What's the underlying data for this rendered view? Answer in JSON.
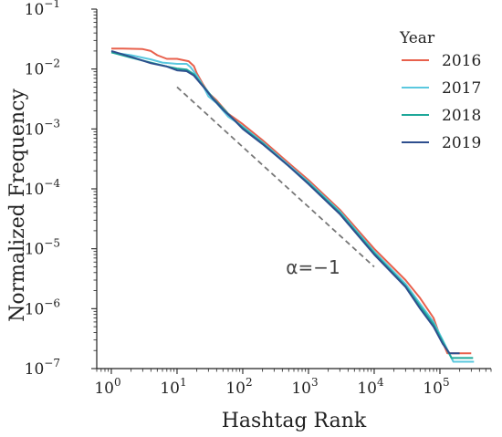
{
  "chart_data": {
    "type": "line",
    "title": "",
    "xlabel": "Hashtag Rank",
    "ylabel": "Normalized Frequency",
    "xscale": "log",
    "yscale": "log",
    "xlim": [
      0.6,
      600000
    ],
    "ylim": [
      1e-07,
      0.1
    ],
    "x_ticks": [
      {
        "value": 1,
        "label": "10",
        "exp": "0"
      },
      {
        "value": 10,
        "label": "10",
        "exp": "1"
      },
      {
        "value": 100,
        "label": "10",
        "exp": "2"
      },
      {
        "value": 1000,
        "label": "10",
        "exp": "3"
      },
      {
        "value": 10000,
        "label": "10",
        "exp": "4"
      },
      {
        "value": 100000,
        "label": "10",
        "exp": "5"
      }
    ],
    "y_ticks": [
      {
        "value": 1e-07,
        "label": "10",
        "exp": "−7"
      },
      {
        "value": 1e-06,
        "label": "10",
        "exp": "−6"
      },
      {
        "value": 1e-05,
        "label": "10",
        "exp": "−5"
      },
      {
        "value": 0.0001,
        "label": "10",
        "exp": "−4"
      },
      {
        "value": 0.001,
        "label": "10",
        "exp": "−3"
      },
      {
        "value": 0.01,
        "label": "10",
        "exp": "−2"
      },
      {
        "value": 0.1,
        "label": "10",
        "exp": "−1"
      }
    ],
    "grid": false,
    "legend": {
      "title": "Year",
      "position": "top-right"
    },
    "series": [
      {
        "name": "2016",
        "color": "#e8604c",
        "points": [
          [
            1,
            0.022
          ],
          [
            1.5,
            0.022
          ],
          [
            3,
            0.0215
          ],
          [
            4,
            0.02
          ],
          [
            5,
            0.017
          ],
          [
            7,
            0.0148
          ],
          [
            10,
            0.0148
          ],
          [
            15,
            0.0135
          ],
          [
            18,
            0.0112
          ],
          [
            20,
            0.0085
          ],
          [
            25,
            0.0055
          ],
          [
            30,
            0.004
          ],
          [
            40,
            0.003
          ],
          [
            60,
            0.0018
          ],
          [
            100,
            0.0012
          ],
          [
            200,
            0.00065
          ],
          [
            500,
            0.00027
          ],
          [
            1000,
            0.00014
          ],
          [
            3000,
            4.5e-05
          ],
          [
            10000,
            1e-05
          ],
          [
            30000,
            3e-06
          ],
          [
            50000,
            1.5e-06
          ],
          [
            80000,
            7e-07
          ],
          [
            100000,
            3.5e-07
          ],
          [
            130000,
            1.8e-07
          ],
          [
            200000,
            1.8e-07
          ],
          [
            300000,
            1.8e-07
          ]
        ]
      },
      {
        "name": "2017",
        "color": "#5bc8df",
        "points": [
          [
            1,
            0.019
          ],
          [
            2,
            0.017
          ],
          [
            4,
            0.0145
          ],
          [
            6,
            0.0128
          ],
          [
            10,
            0.0122
          ],
          [
            14,
            0.0122
          ],
          [
            16,
            0.0108
          ],
          [
            20,
            0.0078
          ],
          [
            25,
            0.0052
          ],
          [
            30,
            0.0035
          ],
          [
            40,
            0.0027
          ],
          [
            60,
            0.0016
          ],
          [
            100,
            0.0011
          ],
          [
            200,
            0.0006
          ],
          [
            500,
            0.00025
          ],
          [
            1000,
            0.00013
          ],
          [
            3000,
            4.2e-05
          ],
          [
            10000,
            9e-06
          ],
          [
            30000,
            2.6e-06
          ],
          [
            50000,
            1.2e-06
          ],
          [
            80000,
            6e-07
          ],
          [
            110000,
            3e-07
          ],
          [
            160000,
            1.3e-07
          ],
          [
            330000,
            1.3e-07
          ]
        ]
      },
      {
        "name": "2018",
        "color": "#1fa89a",
        "points": [
          [
            1,
            0.019
          ],
          [
            2,
            0.0155
          ],
          [
            4,
            0.0128
          ],
          [
            7,
            0.011
          ],
          [
            10,
            0.0102
          ],
          [
            14,
            0.0098
          ],
          [
            18,
            0.0082
          ],
          [
            22,
            0.0062
          ],
          [
            28,
            0.0045
          ],
          [
            35,
            0.0033
          ],
          [
            50,
            0.0022
          ],
          [
            70,
            0.0015
          ],
          [
            100,
            0.00105
          ],
          [
            200,
            0.00058
          ],
          [
            500,
            0.00024
          ],
          [
            1000,
            0.000125
          ],
          [
            3000,
            4e-05
          ],
          [
            10000,
            8.5e-06
          ],
          [
            30000,
            2.4e-06
          ],
          [
            50000,
            1.1e-06
          ],
          [
            80000,
            5.5e-07
          ],
          [
            110000,
            2.8e-07
          ],
          [
            150000,
            1.5e-07
          ],
          [
            320000,
            1.5e-07
          ]
        ]
      },
      {
        "name": "2019",
        "color": "#2e4f8e",
        "points": [
          [
            1,
            0.02
          ],
          [
            2,
            0.016
          ],
          [
            4,
            0.0125
          ],
          [
            7,
            0.011
          ],
          [
            10,
            0.0095
          ],
          [
            14,
            0.0092
          ],
          [
            18,
            0.0078
          ],
          [
            22,
            0.006
          ],
          [
            28,
            0.0044
          ],
          [
            35,
            0.0032
          ],
          [
            50,
            0.0021
          ],
          [
            70,
            0.0015
          ],
          [
            100,
            0.001
          ],
          [
            200,
            0.00056
          ],
          [
            500,
            0.00024
          ],
          [
            1000,
            0.00012
          ],
          [
            3000,
            3.8e-05
          ],
          [
            10000,
            8e-06
          ],
          [
            30000,
            2.3e-06
          ],
          [
            50000,
            1e-06
          ],
          [
            80000,
            5e-07
          ],
          [
            110000,
            2.6e-07
          ],
          [
            140000,
            1.8e-07
          ],
          [
            200000,
            1.8e-07
          ]
        ]
      }
    ],
    "reference_line": {
      "label": "α=−1",
      "color": "#777777",
      "points": [
        [
          10,
          0.005
        ],
        [
          10000,
          5e-06
        ]
      ]
    }
  }
}
